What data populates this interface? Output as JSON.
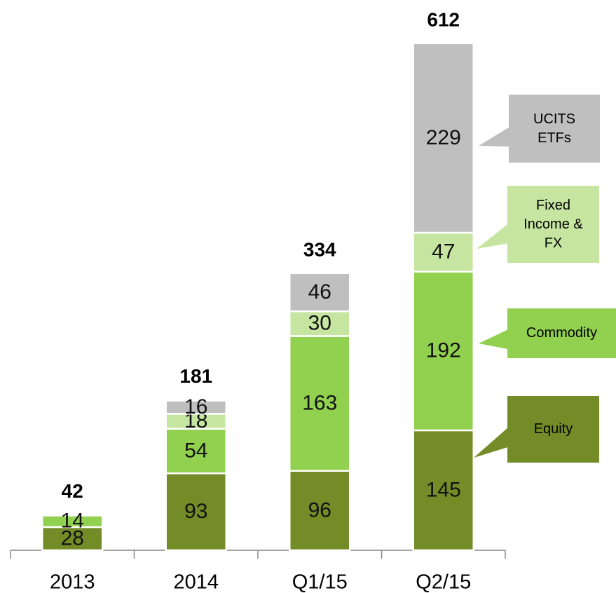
{
  "chart_data": {
    "type": "bar",
    "stacked": true,
    "categories": [
      "2013",
      "2014",
      "Q1/15",
      "Q2/15"
    ],
    "series": [
      {
        "name": "Equity",
        "color": "#738c27",
        "values": [
          28,
          93,
          96,
          145
        ]
      },
      {
        "name": "Commodity",
        "color": "#92d050",
        "values": [
          14,
          54,
          163,
          192
        ]
      },
      {
        "name": "Fixed Income & FX",
        "color": "#c6e5a0",
        "values": [
          null,
          18,
          30,
          47
        ]
      },
      {
        "name": "UCITS ETFs",
        "color": "#bfbfbf",
        "values": [
          null,
          16,
          46,
          229
        ]
      }
    ],
    "totals": [
      42,
      181,
      334,
      612
    ]
  }
}
